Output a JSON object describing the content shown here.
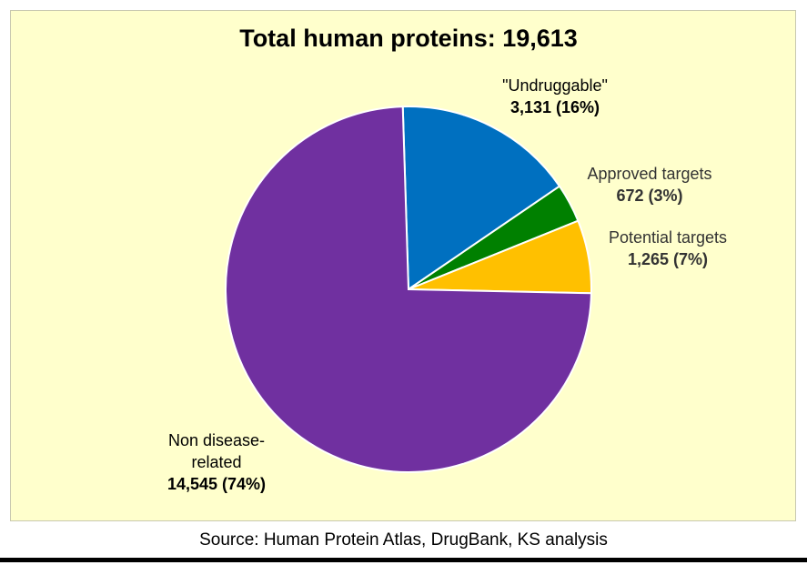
{
  "chart_data": {
    "type": "pie",
    "title": "Total human proteins: 19,613",
    "slices": [
      {
        "label": "\"Undruggable\"",
        "value": 3131,
        "value_label": "3,131 (16%)",
        "color": "#0070c0"
      },
      {
        "label": "Approved targets",
        "value": 672,
        "value_label": "672 (3%)",
        "color": "#008000"
      },
      {
        "label": "Potential targets",
        "value": 1265,
        "value_label": "1,265 (7%)",
        "color": "#ffc000"
      },
      {
        "label": "Non disease-related",
        "label_lines": [
          "Non disease-",
          "related"
        ],
        "value": 14545,
        "value_label": "14,545 (74%)",
        "color": "#7030a0"
      }
    ],
    "total": 19613,
    "legend": "none"
  },
  "source": "Source: Human  Protein Atlas, DrugBank, KS analysis",
  "colors": {
    "background": "#ffffcc",
    "slice_border": "#ffffff"
  }
}
